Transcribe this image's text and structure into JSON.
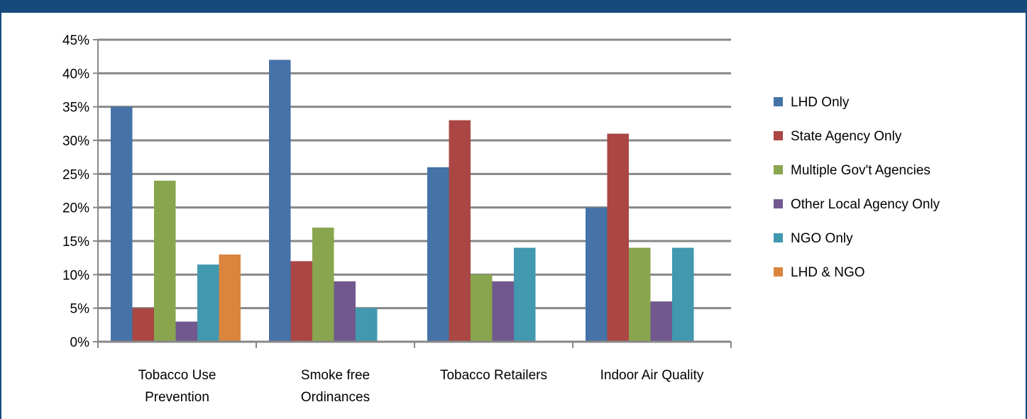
{
  "chart_data": {
    "type": "bar",
    "categories": [
      [
        "Tobacco Use",
        "Prevention"
      ],
      [
        "Smoke free",
        "Ordinances"
      ],
      [
        "Tobacco Retailers"
      ],
      [
        "Indoor Air Quality"
      ]
    ],
    "series": [
      {
        "name": "LHD Only",
        "color": "#4572a7",
        "values": [
          35,
          42,
          26,
          20
        ]
      },
      {
        "name": "State Agency Only",
        "color": "#aa4643",
        "values": [
          5,
          12,
          33,
          31
        ]
      },
      {
        "name": "Multiple Gov't Agencies",
        "color": "#89a54e",
        "values": [
          24,
          17,
          10,
          14
        ]
      },
      {
        "name": "Other Local Agency Only",
        "color": "#71588f",
        "values": [
          3,
          9,
          9,
          6
        ]
      },
      {
        "name": "NGO Only",
        "color": "#4198af",
        "values": [
          11.5,
          5,
          14,
          14
        ]
      },
      {
        "name": "LHD & NGO",
        "color": "#db843d",
        "values": [
          13,
          0,
          0,
          0
        ]
      }
    ],
    "yticks": [
      "0%",
      "5%",
      "10%",
      "15%",
      "20%",
      "25%",
      "30%",
      "35%",
      "40%",
      "45%"
    ],
    "ylim": [
      0,
      45
    ],
    "grid": true,
    "legend_position": "right"
  }
}
